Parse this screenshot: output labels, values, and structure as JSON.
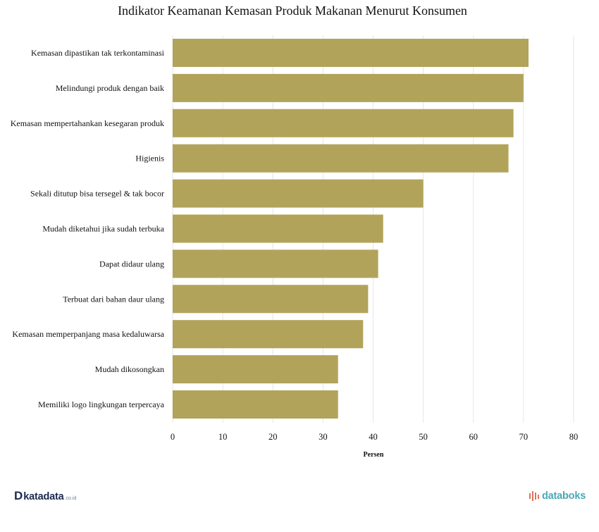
{
  "chart_data": {
    "type": "bar",
    "orientation": "horizontal",
    "title": "Indikator Keamanan Kemasan Produk Makanan Menurut Konsumen",
    "xlabel": "Persen",
    "ylabel": "",
    "xlim": [
      0,
      80
    ],
    "xticks": [
      0,
      10,
      20,
      30,
      40,
      50,
      60,
      70,
      80
    ],
    "grid": true,
    "bar_color": "#b1a45a",
    "categories": [
      "Kemasan dipastikan tak terkontaminasi",
      "Melindungi produk dengan baik",
      "Kemasan mempertahankan kesegaran produk",
      "Higienis",
      "Sekali ditutup bisa tersegel & tak bocor",
      "Mudah diketahui jika sudah terbuka",
      "Dapat didaur ulang",
      "Terbuat dari bahan daur ulang",
      "Kemasan memperpanjang masa kedaluwarsa",
      "Mudah dikosongkan",
      "Memiliki logo lingkungan terpercaya"
    ],
    "values": [
      71,
      70,
      68,
      67,
      50,
      42,
      41,
      39,
      38,
      33,
      33
    ]
  },
  "logos": {
    "left_mark": "D",
    "left_word": "katadata",
    "left_suffix": ".co.id",
    "left_color": "#1b2a4e",
    "right_word": "databoks",
    "right_color": "#4aa8b5",
    "right_icon_color": "#e0735a"
  }
}
